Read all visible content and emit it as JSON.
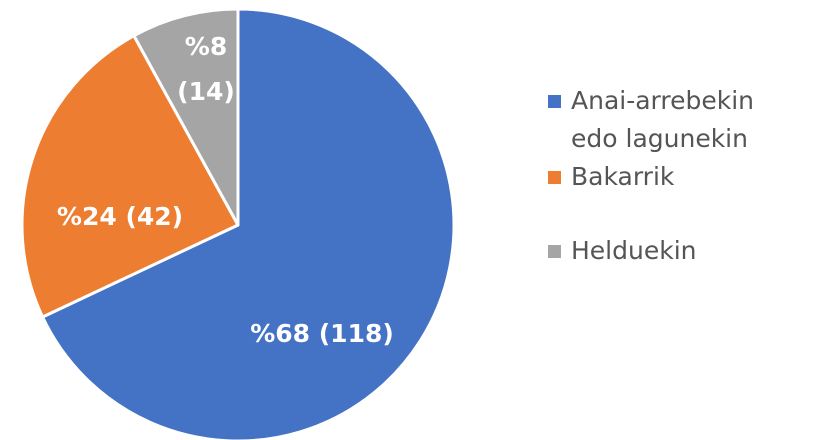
{
  "chart_data": {
    "type": "pie",
    "title": "",
    "slices": [
      {
        "name": "Anai-arrebekin edo lagunekin",
        "percent": 68,
        "count": 118,
        "label": "%68 (118)",
        "color": "#4472C4"
      },
      {
        "name": "Bakarrik",
        "percent": 24,
        "count": 42,
        "label": "%24 (42)",
        "color": "#ED7D31"
      },
      {
        "name": "Helduekin",
        "percent": 8,
        "count": 14,
        "label_lines": [
          "%8",
          "(14)"
        ],
        "color": "#A5A5A5"
      }
    ],
    "legend": {
      "placement": "right",
      "items": [
        {
          "lines": [
            "Anai-arrebekin",
            "edo lagunekin"
          ],
          "color": "#4472C4"
        },
        {
          "lines": [
            "Bakarrik"
          ],
          "color": "#ED7D31"
        },
        {
          "lines": [
            "Helduekin"
          ],
          "color": "#A5A5A5"
        }
      ]
    }
  }
}
